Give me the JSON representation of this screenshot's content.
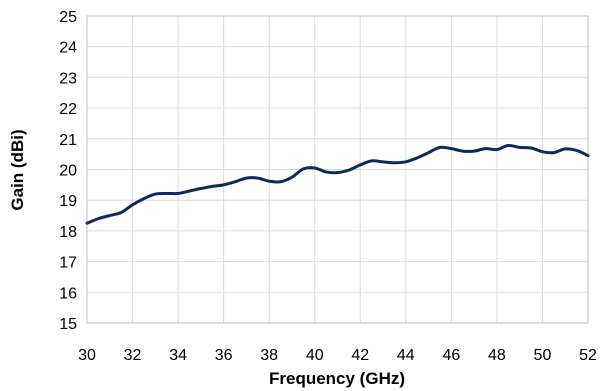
{
  "chart_data": {
    "type": "line",
    "xlabel": "Frequency  (GHz)",
    "ylabel": "Gain  (dBi)",
    "xlim": [
      30,
      52
    ],
    "ylim": [
      15,
      25
    ],
    "xticks": [
      30,
      32,
      34,
      36,
      38,
      40,
      42,
      44,
      46,
      48,
      50,
      52
    ],
    "yticks": [
      15,
      16,
      17,
      18,
      19,
      20,
      21,
      22,
      23,
      24,
      25
    ],
    "grid": true,
    "legend": "none",
    "series": [
      {
        "color": "#0d2a5e",
        "x": [
          30,
          30.5,
          31,
          31.5,
          32,
          32.5,
          33,
          33.5,
          34,
          34.5,
          35,
          35.5,
          36,
          36.5,
          37,
          37.5,
          38,
          38.5,
          39,
          39.5,
          40,
          40.5,
          41,
          41.5,
          42,
          42.5,
          43,
          43.5,
          44,
          44.5,
          45,
          45.5,
          46,
          46.5,
          47,
          47.5,
          48,
          48.5,
          49,
          49.5,
          50,
          50.5,
          51,
          51.5,
          52
        ],
        "y": [
          18.25,
          18.4,
          18.5,
          18.6,
          18.85,
          19.05,
          19.2,
          19.22,
          19.22,
          19.3,
          19.38,
          19.45,
          19.5,
          19.6,
          19.72,
          19.72,
          19.62,
          19.6,
          19.75,
          20.02,
          20.05,
          19.92,
          19.9,
          19.98,
          20.15,
          20.28,
          20.25,
          20.22,
          20.25,
          20.38,
          20.55,
          20.72,
          20.68,
          20.6,
          20.6,
          20.68,
          20.65,
          20.78,
          20.72,
          20.7,
          20.58,
          20.55,
          20.67,
          20.62,
          20.45
        ]
      }
    ]
  }
}
